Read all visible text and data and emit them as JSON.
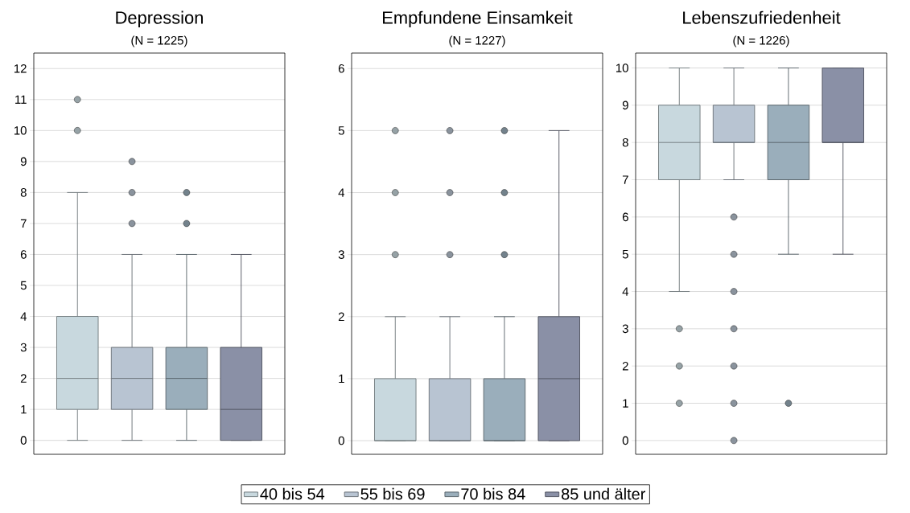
{
  "chart_data": [
    {
      "type": "box",
      "title": "Depression",
      "subtitle": "(N = 1225)",
      "categories": [
        null
      ],
      "ylim": [
        -0.45,
        12.5
      ],
      "yticks": [
        0,
        1,
        2,
        3,
        4,
        5,
        6,
        7,
        8,
        9,
        10,
        11,
        12
      ],
      "grid": "y",
      "tick_labels": "y",
      "legend": "bottom",
      "series": [
        {
          "name": "40 bis 54",
          "color": "#c8d8de",
          "boxes": [
            {
              "low": 0,
              "q1": 1,
              "median": 2,
              "q3": 4,
              "high": 8,
              "outliers": [
                10,
                11
              ]
            }
          ]
        },
        {
          "name": "55 bis 69",
          "color": "#b8c4d2",
          "boxes": [
            {
              "low": 0,
              "q1": 1,
              "median": 2,
              "q3": 3,
              "high": 6,
              "outliers": [
                7,
                8,
                9
              ]
            }
          ]
        },
        {
          "name": "70 bis 84",
          "color": "#9aaebb",
          "boxes": [
            {
              "low": 0,
              "q1": 1,
              "median": 2,
              "q3": 3,
              "high": 6,
              "outliers": [
                7,
                8
              ]
            }
          ]
        },
        {
          "name": "85 und älter",
          "color": "#8a90a6",
          "boxes": [
            {
              "low": 0,
              "q1": 0,
              "median": 1,
              "q3": 3,
              "high": 6
            }
          ]
        }
      ]
    },
    {
      "type": "box",
      "title": "Empfundene Einsamkeit",
      "subtitle": "(N = 1227)",
      "categories": [
        null
      ],
      "ylim": [
        -0.22,
        6.25
      ],
      "yticks": [
        0,
        1,
        2,
        3,
        4,
        5,
        6
      ],
      "grid": "y",
      "tick_labels": "y",
      "series": [
        {
          "color": "#c8d8de",
          "boxes": [
            {
              "low": 0,
              "q1": 0,
              "median": 0,
              "q3": 1,
              "high": 2,
              "outliers": [
                3,
                4,
                5
              ]
            }
          ]
        },
        {
          "color": "#b8c4d2",
          "boxes": [
            {
              "low": 0,
              "q1": 0,
              "median": 0,
              "q3": 1,
              "high": 2,
              "outliers": [
                3,
                4,
                5
              ]
            }
          ]
        },
        {
          "color": "#9aaebb",
          "boxes": [
            {
              "low": 0,
              "q1": 0,
              "median": 0,
              "q3": 1,
              "high": 2,
              "outliers": [
                3,
                4,
                5
              ]
            }
          ]
        },
        {
          "color": "#8a90a6",
          "boxes": [
            {
              "low": 0,
              "q1": 0,
              "median": 1,
              "q3": 2,
              "high": 5
            }
          ]
        }
      ]
    },
    {
      "type": "box",
      "title": "Lebenszufriedenheit",
      "subtitle": "(N = 1226)",
      "categories": [
        null
      ],
      "ylim": [
        -0.37,
        10.4
      ],
      "yticks": [
        0,
        1,
        2,
        3,
        4,
        5,
        6,
        7,
        8,
        9,
        10
      ],
      "grid": "y",
      "tick_labels": "y",
      "series": [
        {
          "color": "#c8d8de",
          "boxes": [
            {
              "low": 4,
              "q1": 7,
              "median": 8,
              "q3": 9,
              "high": 10,
              "outliers": [
                1,
                2,
                3
              ]
            }
          ]
        },
        {
          "color": "#b8c4d2",
          "boxes": [
            {
              "low": 7,
              "q1": 8,
              "median": 8,
              "q3": 9,
              "high": 10,
              "outliers": [
                0,
                1,
                2,
                3,
                4,
                5,
                6
              ]
            }
          ]
        },
        {
          "color": "#9aaebb",
          "boxes": [
            {
              "low": 5,
              "q1": 7,
              "median": 8,
              "q3": 9,
              "high": 10,
              "outliers": [
                1
              ]
            }
          ]
        },
        {
          "color": "#8a90a6",
          "boxes": [
            {
              "low": 5,
              "q1": 8,
              "median": 8,
              "q3": 10,
              "high": 10
            }
          ]
        }
      ]
    }
  ]
}
